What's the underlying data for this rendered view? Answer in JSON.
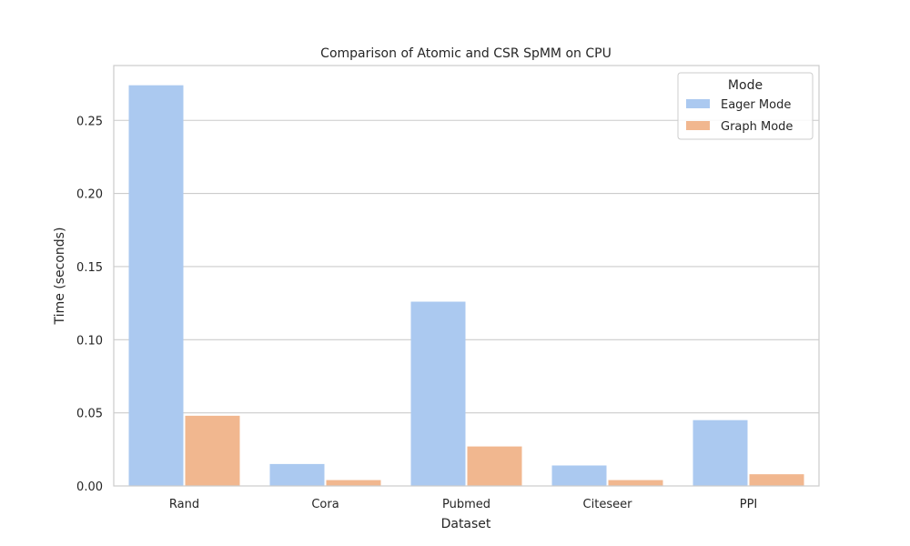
{
  "chart_data": {
    "type": "bar",
    "title": "Comparison of Atomic and CSR SpMM on CPU",
    "xlabel": "Dataset",
    "ylabel": "Time (seconds)",
    "categories": [
      "Rand",
      "Cora",
      "Pubmed",
      "Citeseer",
      "PPI"
    ],
    "series": [
      {
        "name": "Eager Mode",
        "values": [
          0.274,
          0.015,
          0.126,
          0.014,
          0.045
        ],
        "color": "#abc9f0"
      },
      {
        "name": "Graph Mode",
        "values": [
          0.048,
          0.004,
          0.027,
          0.004,
          0.008
        ],
        "color": "#f1b78f"
      }
    ],
    "ylim": [
      0,
      0.2875
    ],
    "yticks": [
      "0.00",
      "0.05",
      "0.10",
      "0.15",
      "0.20",
      "0.25"
    ],
    "grid": true,
    "legend": {
      "title": "Mode",
      "position": "top-right"
    }
  }
}
